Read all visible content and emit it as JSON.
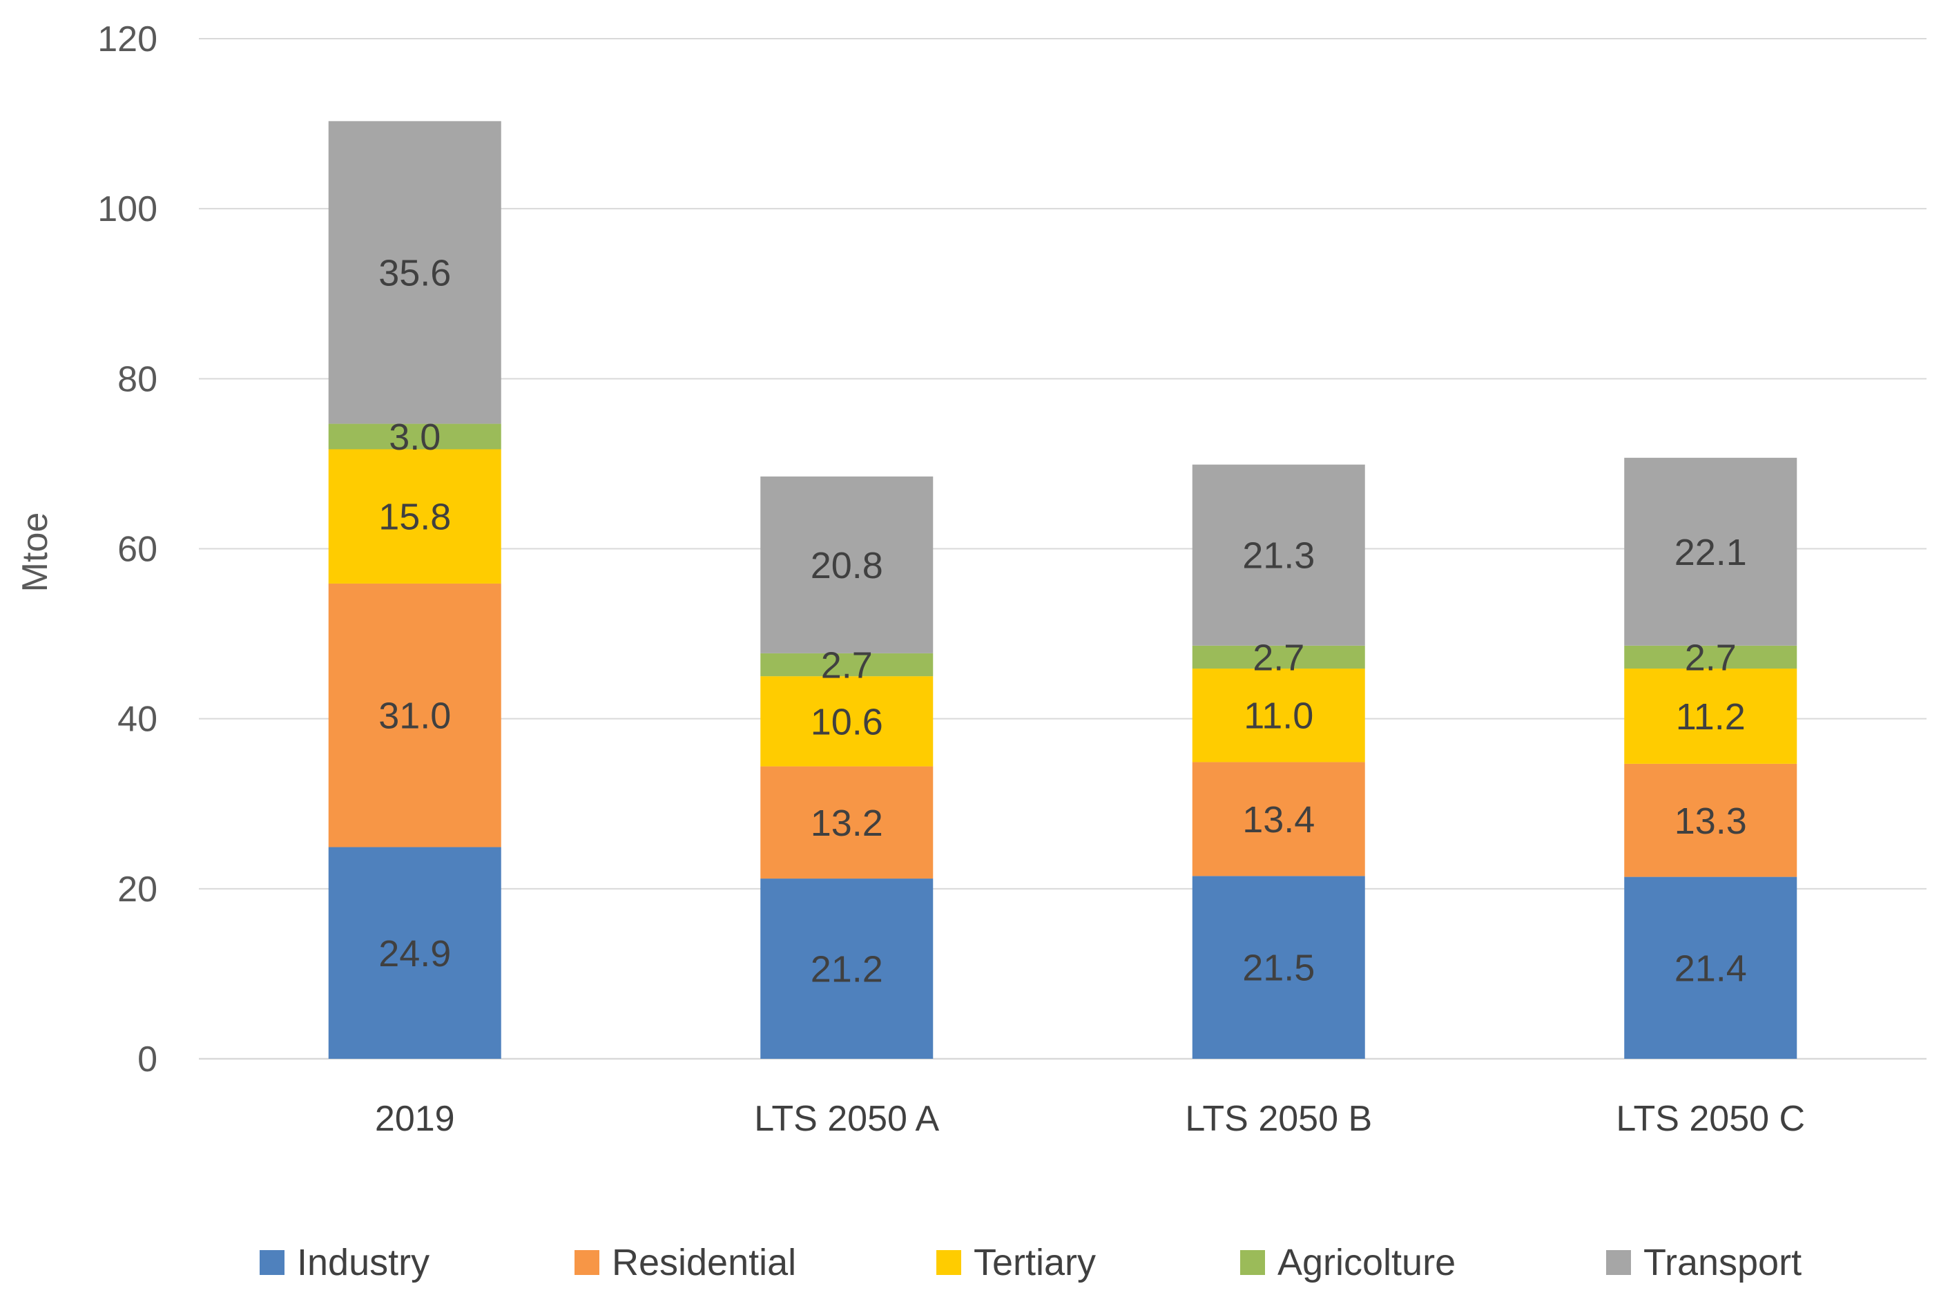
{
  "chart_data": {
    "type": "bar",
    "stacked": true,
    "title": "",
    "xlabel": "",
    "ylabel": "Mtoe",
    "ylim": [
      0,
      120
    ],
    "yticks": [
      0,
      20,
      40,
      60,
      80,
      100,
      120
    ],
    "grid": true,
    "legend_position": "bottom",
    "categories": [
      "2019",
      "LTS 2050 A",
      "LTS 2050 B",
      "LTS 2050 C"
    ],
    "series": [
      {
        "name": "Industry",
        "color": "#4f81bd",
        "values": [
          24.9,
          21.2,
          21.5,
          21.4
        ],
        "labels": [
          "24.9",
          "21.2",
          "21.5",
          "21.4"
        ]
      },
      {
        "name": "Residential",
        "color": "#f79646",
        "values": [
          31.0,
          13.2,
          13.4,
          13.3
        ],
        "labels": [
          "31.0",
          "13.2",
          "13.4",
          "13.3"
        ]
      },
      {
        "name": "Tertiary",
        "color": "#ffcc00",
        "values": [
          15.8,
          10.6,
          11.0,
          11.2
        ],
        "labels": [
          "15.8",
          "10.6",
          "11.0",
          "11.2"
        ]
      },
      {
        "name": "Agricolture",
        "color": "#9bbb59",
        "values": [
          3.0,
          2.7,
          2.7,
          2.7
        ],
        "labels": [
          "3.0",
          "2.7",
          "2.7",
          "2.7"
        ]
      },
      {
        "name": "Transport",
        "color": "#a6a6a6",
        "values": [
          35.6,
          20.8,
          21.3,
          22.1
        ],
        "labels": [
          "35.6",
          "20.8",
          "21.3",
          "22.1"
        ]
      }
    ]
  }
}
